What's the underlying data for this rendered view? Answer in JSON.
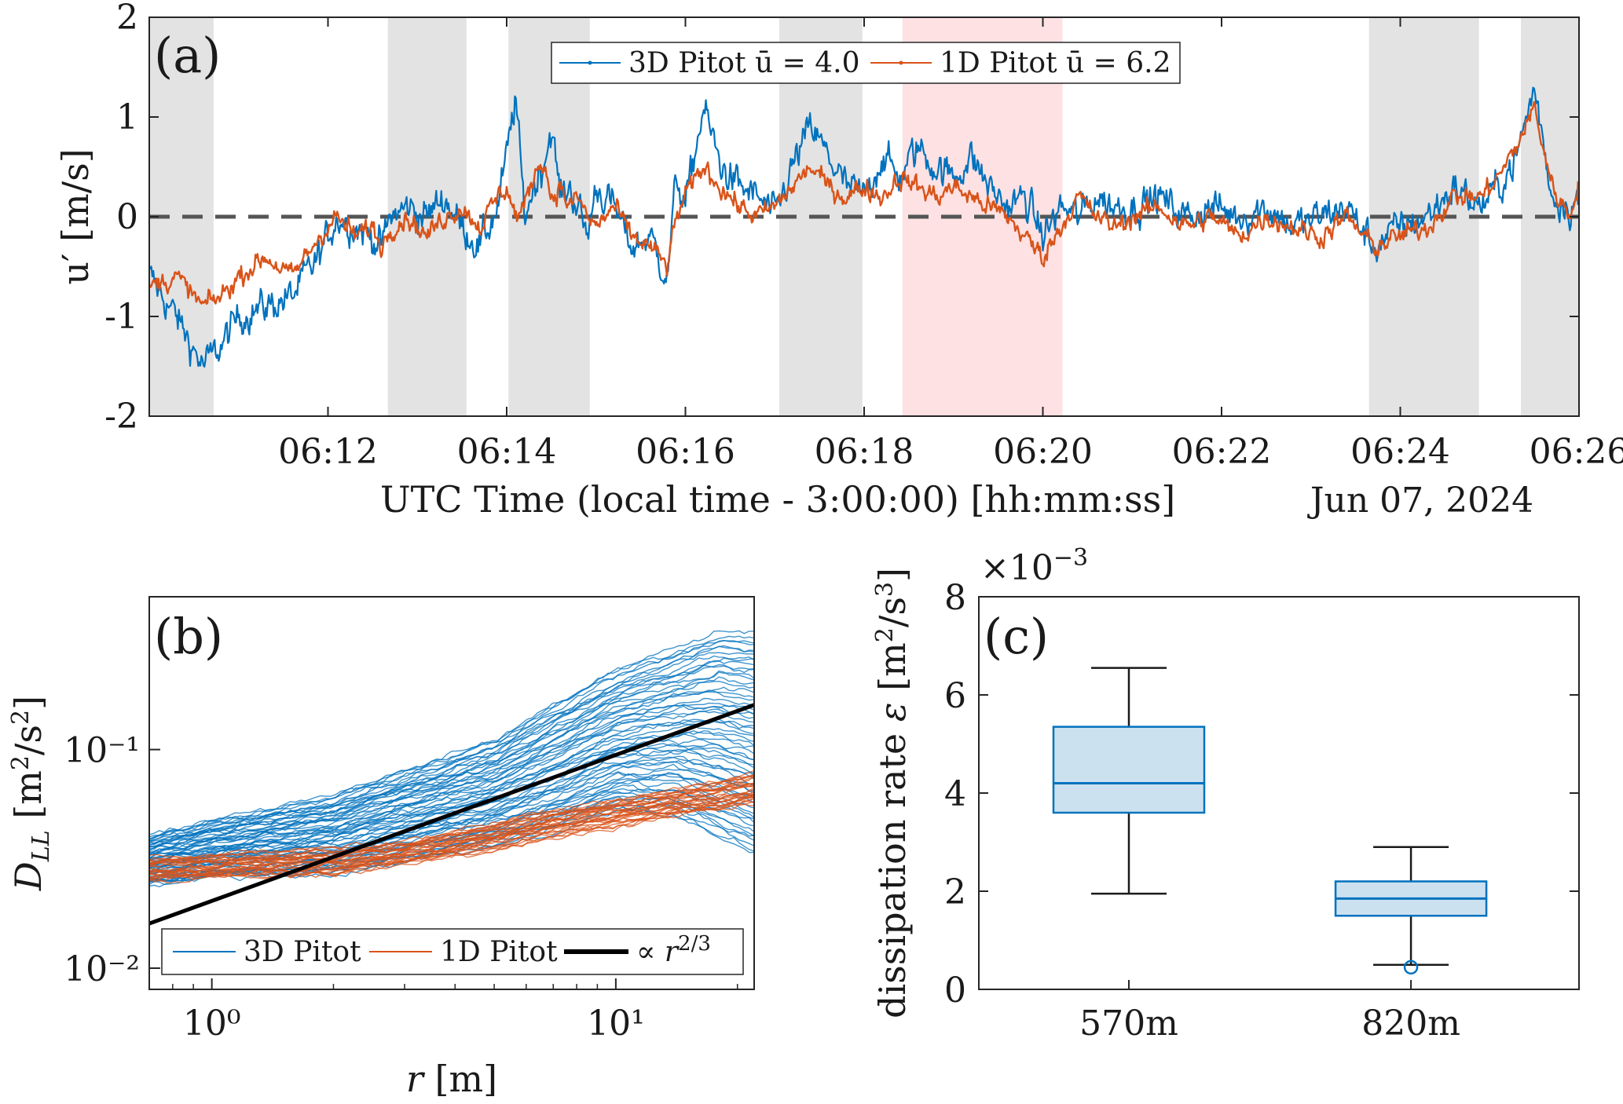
{
  "figure_date": "Jun 07, 2024",
  "chart_data": [
    {
      "panel": "(a)",
      "type": "line",
      "xlabel": "UTC Time (local time - 3:00:00) [hh:mm:ss]",
      "ylabel": "u′ [m/s]",
      "xlim_minutes": [
        10.0,
        26.0
      ],
      "ylim": [
        -2,
        2
      ],
      "xticks": [
        12,
        14,
        16,
        18,
        20,
        22,
        24,
        26
      ],
      "xticklabels": [
        "06:12",
        "06:14",
        "06:16",
        "06:18",
        "06:20",
        "06:22",
        "06:24",
        "06:26"
      ],
      "yticks": [
        2,
        1,
        0,
        -1,
        -2
      ],
      "yticklabels": [
        "2",
        "1",
        "0",
        "-1",
        "-2"
      ],
      "zero_line": true,
      "legend_position": "top-center",
      "gray_bands_minutes": [
        [
          10.0,
          10.72
        ],
        [
          12.67,
          13.55
        ],
        [
          14.02,
          14.93
        ],
        [
          17.05,
          17.98
        ],
        [
          23.65,
          24.88
        ],
        [
          25.35,
          26.0
        ]
      ],
      "pink_bands_minutes": [
        [
          18.43,
          20.22
        ]
      ],
      "series": [
        {
          "name": "3D Pitot",
          "legend_label": "3D Pitot ū = 4.0",
          "color": "#0072BD",
          "x": [
            10.0,
            10.3,
            10.6,
            10.8,
            11.0,
            11.3,
            11.6,
            11.9,
            12.1,
            12.3,
            12.5,
            12.6,
            12.7,
            12.9,
            13.1,
            13.3,
            13.5,
            13.7,
            13.9,
            14.0,
            14.1,
            14.2,
            14.3,
            14.4,
            14.5,
            14.6,
            14.7,
            14.8,
            14.9,
            15.0,
            15.2,
            15.4,
            15.6,
            15.8,
            15.9,
            16.0,
            16.2,
            16.4,
            16.6,
            16.8,
            17.0,
            17.2,
            17.4,
            17.6,
            17.8,
            18.0,
            18.2,
            18.4,
            18.6,
            18.8,
            19.0,
            19.2,
            19.4,
            19.6,
            19.8,
            20.0,
            20.2,
            20.4,
            20.6,
            20.8,
            21.0,
            21.3,
            21.6,
            21.9,
            22.2,
            22.5,
            22.8,
            23.1,
            23.4,
            23.7,
            24.0,
            24.3,
            24.6,
            24.9,
            25.1,
            25.3,
            25.5,
            25.7,
            25.9,
            26.0
          ],
          "values": [
            -0.6,
            -1.0,
            -1.5,
            -1.3,
            -1.0,
            -0.9,
            -0.8,
            -0.4,
            0.0,
            -0.1,
            -0.2,
            -0.3,
            0.0,
            0.1,
            0.0,
            0.2,
            -0.1,
            -0.3,
            0.1,
            0.6,
            1.2,
            0.0,
            0.3,
            0.5,
            0.9,
            0.2,
            0.3,
            0.1,
            -0.2,
            0.3,
            0.1,
            -0.3,
            -0.2,
            -0.6,
            0.4,
            0.1,
            1.1,
            0.5,
            0.3,
            0.2,
            0.0,
            0.5,
            0.9,
            0.6,
            0.3,
            0.2,
            0.6,
            0.4,
            0.7,
            0.5,
            0.4,
            0.6,
            0.3,
            0.1,
            0.2,
            -0.2,
            0.1,
            0.0,
            0.2,
            0.1,
            0.1,
            0.2,
            0.0,
            0.1,
            0.0,
            0.1,
            -0.1,
            0.0,
            0.1,
            -0.3,
            -0.1,
            0.0,
            0.3,
            0.1,
            0.3,
            0.6,
            1.3,
            0.2,
            0.1,
            0.2
          ]
        },
        {
          "name": "1D Pitot",
          "legend_label": "1D Pitot ū = 6.2",
          "color": "#D95319",
          "x": [
            10.0,
            10.3,
            10.6,
            10.8,
            11.0,
            11.3,
            11.6,
            11.9,
            12.1,
            12.3,
            12.5,
            12.6,
            12.7,
            12.9,
            13.1,
            13.3,
            13.5,
            13.7,
            13.9,
            14.0,
            14.1,
            14.2,
            14.3,
            14.4,
            14.5,
            14.6,
            14.7,
            14.8,
            14.9,
            15.0,
            15.2,
            15.4,
            15.6,
            15.8,
            15.9,
            16.0,
            16.2,
            16.4,
            16.6,
            16.8,
            17.0,
            17.2,
            17.4,
            17.6,
            17.8,
            18.0,
            18.2,
            18.4,
            18.6,
            18.8,
            19.0,
            19.2,
            19.4,
            19.6,
            19.8,
            20.0,
            20.2,
            20.4,
            20.6,
            20.8,
            21.0,
            21.3,
            21.6,
            21.9,
            22.2,
            22.5,
            22.8,
            23.1,
            23.4,
            23.7,
            24.0,
            24.3,
            24.6,
            24.9,
            25.1,
            25.3,
            25.5,
            25.7,
            25.9,
            26.0
          ],
          "values": [
            -0.7,
            -0.6,
            -0.9,
            -0.8,
            -0.6,
            -0.4,
            -0.6,
            -0.2,
            0.0,
            -0.2,
            -0.1,
            -0.3,
            -0.1,
            0.0,
            -0.2,
            0.0,
            0.1,
            -0.1,
            0.2,
            0.3,
            0.0,
            0.1,
            0.4,
            0.6,
            0.2,
            0.3,
            0.1,
            0.2,
            0.0,
            -0.1,
            0.1,
            -0.2,
            -0.3,
            -0.5,
            0.0,
            0.2,
            0.5,
            0.3,
            0.1,
            0.0,
            0.1,
            0.3,
            0.5,
            0.3,
            0.2,
            0.3,
            0.2,
            0.4,
            0.3,
            0.2,
            0.3,
            0.2,
            0.1,
            0.0,
            -0.2,
            -0.4,
            -0.1,
            0.2,
            0.0,
            -0.1,
            0.0,
            0.1,
            -0.1,
            0.0,
            -0.2,
            0.0,
            -0.1,
            -0.2,
            0.0,
            -0.3,
            -0.2,
            -0.1,
            0.2,
            0.2,
            0.4,
            0.7,
            1.1,
            0.3,
            0.0,
            0.4
          ]
        }
      ]
    },
    {
      "panel": "(b)",
      "type": "line",
      "scale": "log-log",
      "xlabel": "r [m]",
      "ylabel": "D_LL [m²/s²]",
      "xlim": [
        0.7,
        22
      ],
      "ylim": [
        0.008,
        0.5
      ],
      "xticklabels": [
        "10⁰",
        "10¹"
      ],
      "yticklabels": [
        "10⁻¹",
        "10⁻²"
      ],
      "legend_position": "bottom",
      "legend": [
        "3D Pitot",
        "1D Pitot",
        "∝ r^(2/3)"
      ],
      "series": [
        {
          "name": "3D Pitot",
          "color": "#0072BD",
          "n_curves_approx": 60,
          "r": [
            0.7,
            1,
            2,
            3,
            5,
            7,
            10,
            14,
            18,
            22
          ],
          "DLL_median": [
            0.032,
            0.036,
            0.046,
            0.058,
            0.076,
            0.095,
            0.12,
            0.17,
            0.19,
            0.2
          ],
          "DLL_low": [
            0.024,
            0.026,
            0.027,
            0.031,
            0.036,
            0.042,
            0.052,
            0.05,
            0.04,
            0.034
          ],
          "DLL_high": [
            0.04,
            0.047,
            0.062,
            0.08,
            0.11,
            0.16,
            0.23,
            0.29,
            0.35,
            0.34
          ]
        },
        {
          "name": "1D Pitot",
          "color": "#D95319",
          "n_curves_approx": 30,
          "r": [
            0.7,
            1,
            2,
            3,
            5,
            7,
            10,
            14,
            18,
            22
          ],
          "DLL_median": [
            0.028,
            0.03,
            0.032,
            0.034,
            0.041,
            0.047,
            0.051,
            0.058,
            0.063,
            0.068
          ],
          "DLL_low": [
            0.025,
            0.026,
            0.027,
            0.03,
            0.035,
            0.04,
            0.045,
            0.05,
            0.053,
            0.056
          ],
          "DLL_high": [
            0.032,
            0.033,
            0.035,
            0.038,
            0.046,
            0.052,
            0.058,
            0.066,
            0.072,
            0.078
          ]
        },
        {
          "name": "∝ r^(2/3)",
          "color": "#000000",
          "r": [
            0.7,
            22
          ],
          "values": [
            0.016,
            0.16
          ]
        }
      ]
    },
    {
      "panel": "(c)",
      "type": "box",
      "ylabel": "dissipation rate ε [m²/s³]",
      "exponent_label": "×10⁻³",
      "ylim": [
        0,
        8
      ],
      "yticks": [
        0,
        2,
        4,
        6,
        8
      ],
      "yticklabels": [
        "0",
        "2",
        "4",
        "6",
        "8"
      ],
      "categories": [
        "570m",
        "820m"
      ],
      "boxes": [
        {
          "label": "570m",
          "min": 1.95,
          "q1": 3.6,
          "median": 4.2,
          "q3": 5.35,
          "max": 6.55,
          "outliers": []
        },
        {
          "label": "820m",
          "min": 0.5,
          "q1": 1.5,
          "median": 1.85,
          "q3": 2.2,
          "max": 2.9,
          "outliers": [
            0.45
          ]
        }
      ],
      "box_fill": "#cce1f0",
      "box_edge": "#0072BD",
      "whisker_color": "#1a1a1a"
    }
  ]
}
